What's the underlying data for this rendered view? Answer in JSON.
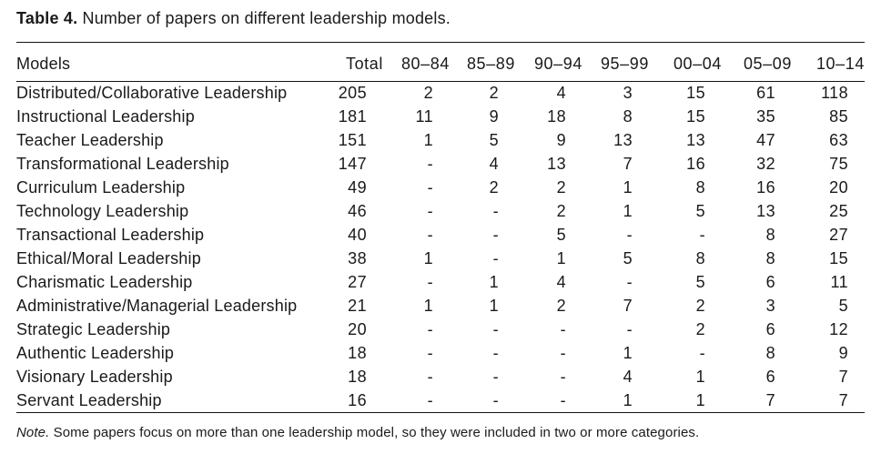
{
  "title": {
    "label": "Table 4.",
    "text": " Number of papers on different leadership models."
  },
  "table": {
    "columns": [
      "Models",
      "Total",
      "80–84",
      "85–89",
      "90–94",
      "95–99",
      "00–04",
      "05–09",
      "10–14"
    ],
    "rows": [
      {
        "model": "Distributed/Collaborative Leadership",
        "values": [
          "205",
          "2",
          "2",
          "4",
          "3",
          "15",
          "61",
          "118"
        ]
      },
      {
        "model": "Instructional Leadership",
        "values": [
          "181",
          "11",
          "9",
          "18",
          "8",
          "15",
          "35",
          "85"
        ]
      },
      {
        "model": "Teacher Leadership",
        "values": [
          "151",
          "1",
          "5",
          "9",
          "13",
          "13",
          "47",
          "63"
        ]
      },
      {
        "model": "Transformational Leadership",
        "values": [
          "147",
          "-",
          "4",
          "13",
          "7",
          "16",
          "32",
          "75"
        ]
      },
      {
        "model": "Curriculum Leadership",
        "values": [
          "49",
          "-",
          "2",
          "2",
          "1",
          "8",
          "16",
          "20"
        ]
      },
      {
        "model": "Technology Leadership",
        "values": [
          "46",
          "-",
          "-",
          "2",
          "1",
          "5",
          "13",
          "25"
        ]
      },
      {
        "model": "Transactional Leadership",
        "values": [
          "40",
          "-",
          "-",
          "5",
          "-",
          "-",
          "8",
          "27"
        ]
      },
      {
        "model": "Ethical/Moral Leadership",
        "values": [
          "38",
          "1",
          "-",
          "1",
          "5",
          "8",
          "8",
          "15"
        ]
      },
      {
        "model": "Charismatic Leadership",
        "values": [
          "27",
          "-",
          "1",
          "4",
          "-",
          "5",
          "6",
          "11"
        ]
      },
      {
        "model": "Administrative/Managerial Leadership",
        "values": [
          "21",
          "1",
          "1",
          "2",
          "7",
          "2",
          "3",
          "5"
        ]
      },
      {
        "model": "Strategic Leadership",
        "values": [
          "20",
          "-",
          "-",
          "-",
          "-",
          "2",
          "6",
          "12"
        ]
      },
      {
        "model": "Authentic Leadership",
        "values": [
          "18",
          "-",
          "-",
          "-",
          "1",
          "-",
          "8",
          "9"
        ]
      },
      {
        "model": "Visionary Leadership",
        "values": [
          "18",
          "-",
          "-",
          "-",
          "4",
          "1",
          "6",
          "7"
        ]
      },
      {
        "model": "Servant Leadership",
        "values": [
          "16",
          "-",
          "-",
          "-",
          "1",
          "1",
          "7",
          "7"
        ]
      }
    ]
  },
  "note": {
    "label": "Note.",
    "text": " Some papers focus on more than one leadership model, so they were included in two or more categories."
  }
}
